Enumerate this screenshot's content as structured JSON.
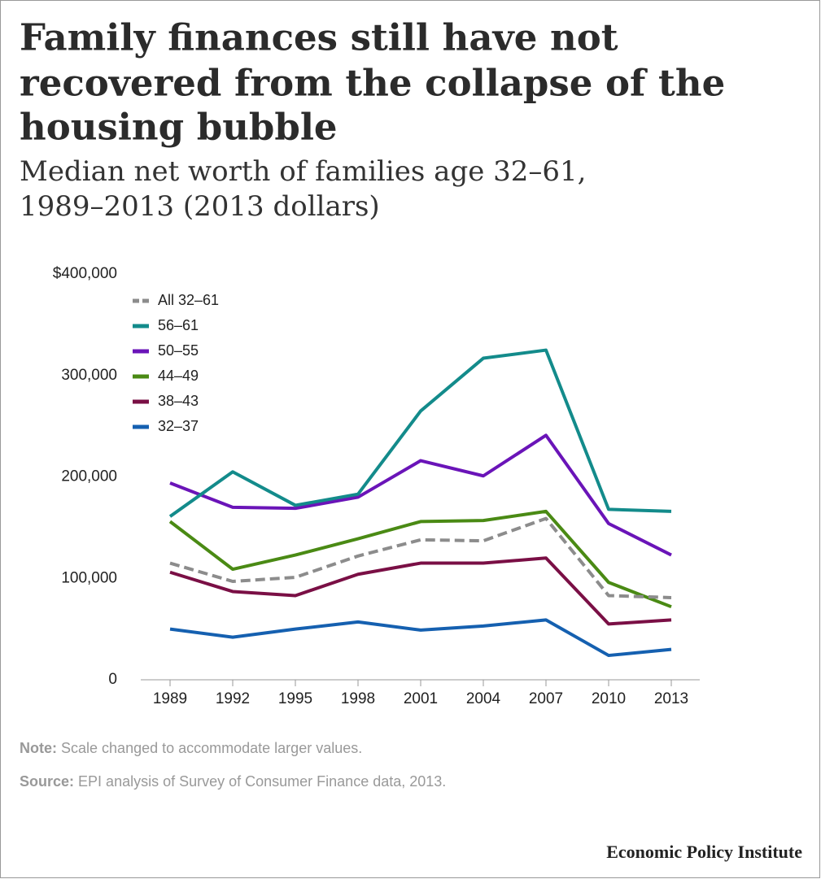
{
  "chart_data": {
    "type": "line",
    "title": [
      "Family finances still have not",
      "recovered from the collapse of the",
      "housing bubble"
    ],
    "subtitle": [
      "Median net worth of families age 32–61,",
      "1989–2013 (2013 dollars)"
    ],
    "categories": [
      "1989",
      "1992",
      "1995",
      "1998",
      "2001",
      "2004",
      "2007",
      "2010",
      "2013"
    ],
    "ylim": [
      0,
      400000
    ],
    "yticks": [
      0,
      {
        "value": 100000,
        "label": "100,000"
      },
      {
        "value": 200000,
        "label": "200,000"
      },
      {
        "value": 300000,
        "label": "300,000"
      },
      {
        "value": 400000,
        "label": "$400,000"
      }
    ],
    "series": [
      {
        "name": "All 32–61",
        "color": "#8c8c8c",
        "dashed": true,
        "values": [
          115000,
          97000,
          101000,
          122000,
          138000,
          137000,
          159000,
          83000,
          81000
        ]
      },
      {
        "name": "56–61",
        "color": "#138b8b",
        "values": [
          161000,
          205000,
          172000,
          183000,
          265000,
          317000,
          325000,
          168000,
          166000
        ]
      },
      {
        "name": "50–55",
        "color": "#6a14b8",
        "values": [
          194000,
          170000,
          169000,
          180000,
          216000,
          201000,
          241000,
          154000,
          123000
        ]
      },
      {
        "name": "44–49",
        "color": "#4a8a14",
        "values": [
          156000,
          109000,
          123000,
          139000,
          156000,
          157000,
          166000,
          96000,
          72000
        ]
      },
      {
        "name": "38–43",
        "color": "#7a0f45",
        "values": [
          106000,
          87000,
          83000,
          104000,
          115000,
          115000,
          120000,
          55000,
          59000
        ]
      },
      {
        "name": "32–37",
        "color": "#1560b0",
        "values": [
          50000,
          42000,
          50000,
          57000,
          49000,
          53000,
          59000,
          24000,
          30000
        ]
      }
    ],
    "note_label": "Note:",
    "note": "Scale changed to accommodate larger values.",
    "source_label": "Source:",
    "source": "EPI analysis of  Survey of Consumer Finance data, 2013.",
    "footer": "Economic Policy Institute"
  }
}
